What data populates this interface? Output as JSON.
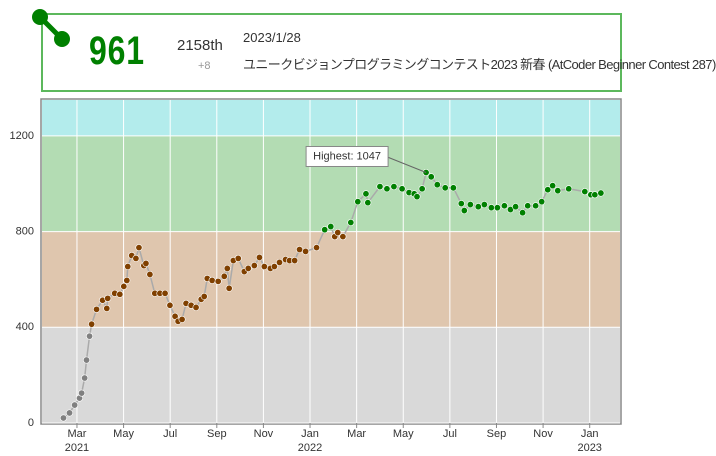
{
  "tooltip": {
    "rating": "961",
    "rank": "2158th",
    "diff": "+8",
    "date": "2023/1/28",
    "contest": "ユニークビジョンプログラミングコンテスト2023 新春 (AtCoder Beginner Contest 287)"
  },
  "chart_data": {
    "type": "line",
    "x": [
      1.42,
      1.68,
      1.9,
      2.11,
      2.2,
      2.33,
      2.41,
      2.54,
      2.63,
      2.84,
      3.1,
      3.28,
      3.32,
      3.62,
      3.84,
      4.01,
      4.14,
      4.18,
      4.35,
      4.53,
      4.66,
      4.87,
      4.96,
      5.13,
      5.34,
      5.56,
      5.78,
      5.99,
      6.21,
      6.34,
      6.51,
      6.68,
      6.9,
      7.11,
      7.33,
      7.46,
      7.59,
      7.8,
      8.06,
      8.32,
      8.45,
      8.53,
      8.71,
      8.92,
      9.18,
      9.35,
      9.61,
      9.83,
      10.04,
      10.3,
      10.47,
      10.69,
      10.95,
      11.12,
      11.34,
      11.55,
      11.81,
      12.28,
      12.63,
      12.89,
      13.06,
      13.19,
      13.41,
      13.75,
      14.05,
      14.4,
      14.48,
      15.0,
      15.3,
      15.6,
      15.95,
      16.25,
      16.47,
      16.59,
      16.81,
      16.98,
      17.2,
      17.46,
      17.8,
      18.15,
      18.49,
      18.62,
      18.88,
      19.22,
      19.48,
      19.78,
      20.04,
      20.34,
      20.6,
      20.82,
      21.12,
      21.34,
      21.68,
      21.94,
      22.2,
      22.41,
      22.63,
      23.1,
      23.79,
      24.05,
      24.22,
      24.48
    ],
    "values": [
      21,
      42,
      75,
      104,
      125,
      188,
      263,
      363,
      413,
      475,
      513,
      479,
      521,
      542,
      538,
      571,
      596,
      654,
      700,
      688,
      733,
      658,
      667,
      621,
      542,
      542,
      542,
      492,
      446,
      425,
      433,
      500,
      492,
      483,
      517,
      529,
      604,
      596,
      592,
      613,
      646,
      563,
      679,
      688,
      633,
      646,
      658,
      692,
      654,
      646,
      654,
      671,
      683,
      679,
      679,
      725,
      717,
      733,
      808,
      821,
      779,
      796,
      779,
      838,
      925,
      958,
      921,
      988,
      979,
      988,
      979,
      963,
      958,
      946,
      979,
      1047,
      1029,
      996,
      983,
      983,
      917,
      888,
      913,
      904,
      913,
      900,
      900,
      908,
      892,
      904,
      879,
      908,
      908,
      925,
      975,
      992,
      971,
      979,
      967,
      954,
      954,
      961
    ],
    "color": "#aaaaaa",
    "xlim": [
      0.5,
      25.3
    ],
    "ylim": [
      0,
      1350
    ],
    "yticks": [
      0,
      400,
      800,
      1200
    ],
    "xticks": [
      {
        "value": 2,
        "label": "Mar"
      },
      {
        "value": 4,
        "label": "May"
      },
      {
        "value": 6,
        "label": "Jul"
      },
      {
        "value": 8,
        "label": "Sep"
      },
      {
        "value": 10,
        "label": "Nov"
      },
      {
        "value": 12,
        "label": "Jan"
      },
      {
        "value": 14,
        "label": "Mar"
      },
      {
        "value": 16,
        "label": "May"
      },
      {
        "value": 18,
        "label": "Jul"
      },
      {
        "value": 20,
        "label": "Sep"
      },
      {
        "value": 22,
        "label": "Nov"
      },
      {
        "value": 24,
        "label": "Jan"
      }
    ],
    "year_labels": [
      {
        "value": 2,
        "label": "2021"
      },
      {
        "value": 12,
        "label": "2022"
      },
      {
        "value": 24,
        "label": "2023"
      }
    ],
    "bands": [
      {
        "from": 0,
        "to": 400,
        "color": "#d9d9d9",
        "dot": "#808080"
      },
      {
        "from": 400,
        "to": 800,
        "color": "#dfc6ae",
        "dot": "#804000"
      },
      {
        "from": 800,
        "to": 1200,
        "color": "#b3dcb3",
        "dot": "#008000"
      },
      {
        "from": 1200,
        "to": 1350,
        "color": "#b3ecec",
        "dot": "#00c0c0"
      }
    ],
    "grid": true,
    "highest": {
      "label": "Highest: 1047",
      "index": 75
    }
  }
}
